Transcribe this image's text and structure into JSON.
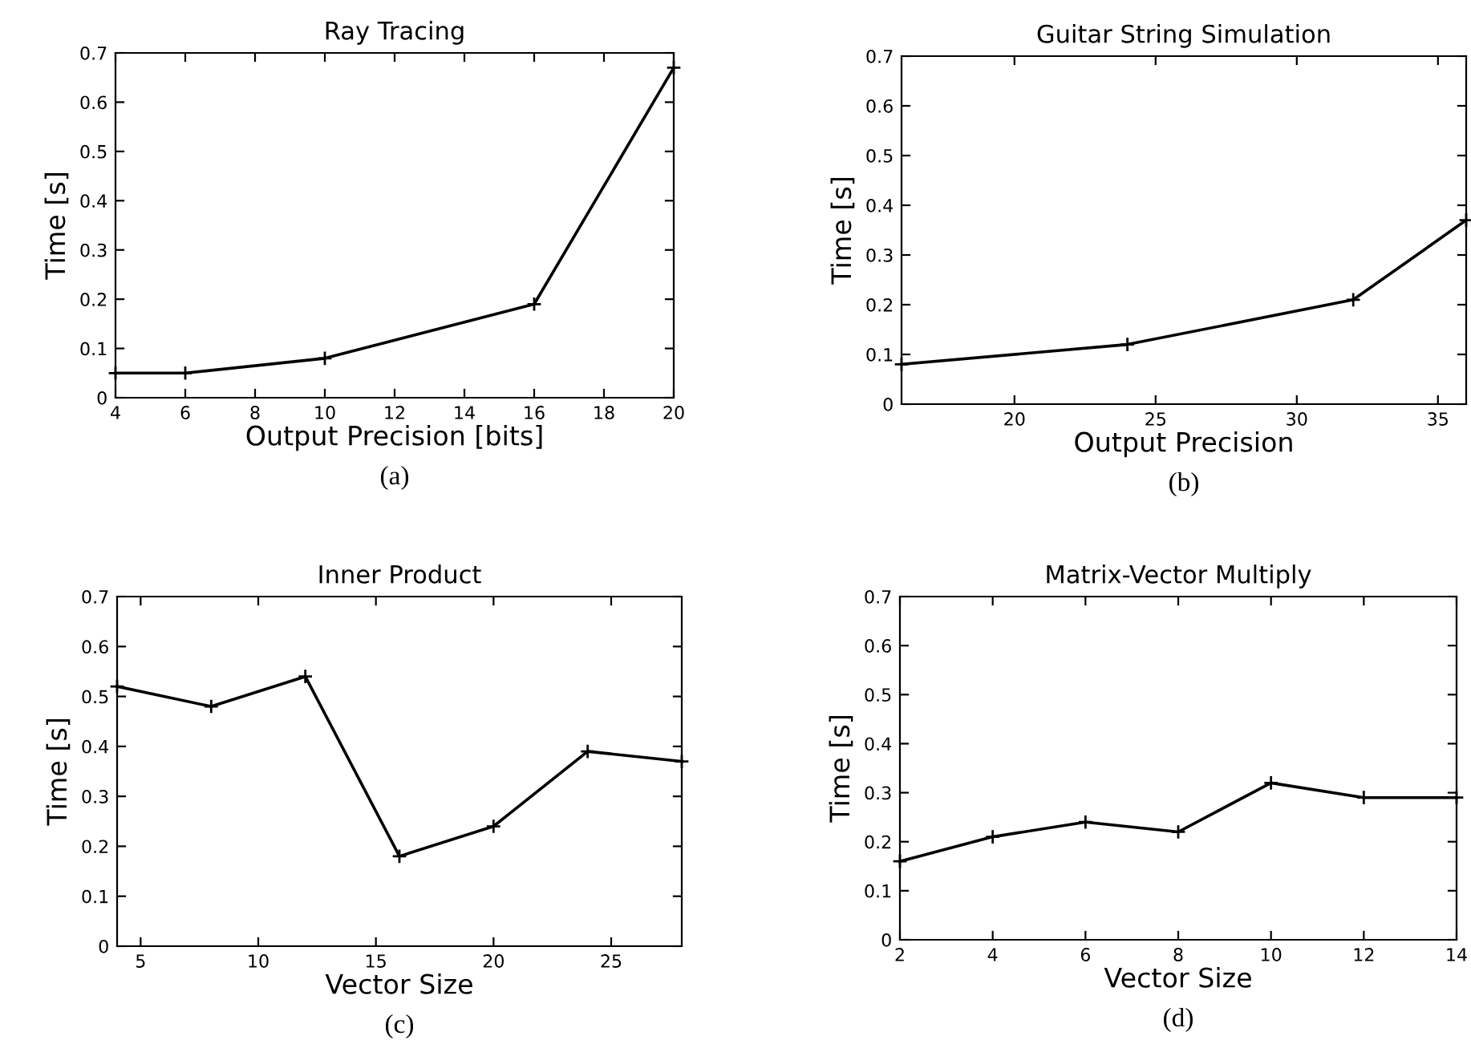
{
  "chart_data": [
    {
      "type": "line",
      "title": "Ray Tracing",
      "xlabel": "Output Precision [bits]",
      "ylabel": "Time [s]",
      "annotations": [
        "(a)"
      ],
      "x": [
        4,
        6,
        10,
        16,
        20
      ],
      "values": [
        0.05,
        0.05,
        0.08,
        0.19,
        0.67
      ],
      "color": "#000000",
      "xlim": [
        4,
        20
      ],
      "xticks": [
        4,
        6,
        8,
        10,
        12,
        14,
        16,
        18,
        20
      ],
      "ylim": [
        0,
        0.7
      ],
      "yticks": [
        0,
        0.1,
        0.2,
        0.3,
        0.4,
        0.5,
        0.6,
        0.7
      ],
      "marker": "cross",
      "line_style": "solid",
      "grid": false,
      "legend": false
    },
    {
      "type": "line",
      "title": "Guitar String Simulation",
      "xlabel": "Output Precision",
      "ylabel": "Time [s]",
      "annotations": [
        "(b)"
      ],
      "x": [
        16,
        24,
        32,
        36
      ],
      "values": [
        0.08,
        0.12,
        0.21,
        0.37
      ],
      "color": "#000000",
      "xlim": [
        16,
        36
      ],
      "xticks": [
        20,
        25,
        30,
        35
      ],
      "ylim": [
        0,
        0.7
      ],
      "yticks": [
        0,
        0.1,
        0.2,
        0.3,
        0.4,
        0.5,
        0.6,
        0.7
      ],
      "marker": "cross",
      "line_style": "solid",
      "grid": false,
      "legend": false
    },
    {
      "type": "line",
      "title": "Inner Product",
      "xlabel": "Vector Size",
      "ylabel": "Time [s]",
      "annotations": [
        "(c)"
      ],
      "x": [
        4,
        8,
        12,
        16,
        20,
        24,
        28
      ],
      "values": [
        0.52,
        0.48,
        0.54,
        0.18,
        0.24,
        0.39,
        0.37
      ],
      "color": "#000000",
      "xlim": [
        4,
        28
      ],
      "xticks": [
        5,
        10,
        15,
        20,
        25
      ],
      "ylim": [
        0,
        0.7
      ],
      "yticks": [
        0,
        0.1,
        0.2,
        0.3,
        0.4,
        0.5,
        0.6,
        0.7
      ],
      "marker": "cross",
      "line_style": "solid",
      "grid": false,
      "legend": false
    },
    {
      "type": "line",
      "title": "Matrix-Vector Multiply",
      "xlabel": "Vector Size",
      "ylabel": "Time [s]",
      "annotations": [
        "(d)"
      ],
      "x": [
        2,
        4,
        6,
        8,
        10,
        12,
        14
      ],
      "values": [
        0.16,
        0.21,
        0.24,
        0.22,
        0.32,
        0.29,
        0.29
      ],
      "color": "#000000",
      "xlim": [
        2,
        14
      ],
      "xticks": [
        2,
        4,
        6,
        8,
        10,
        12,
        14
      ],
      "ylim": [
        0,
        0.7
      ],
      "yticks": [
        0,
        0.1,
        0.2,
        0.3,
        0.4,
        0.5,
        0.6,
        0.7
      ],
      "marker": "cross",
      "line_style": "solid",
      "grid": false,
      "legend": false
    }
  ]
}
